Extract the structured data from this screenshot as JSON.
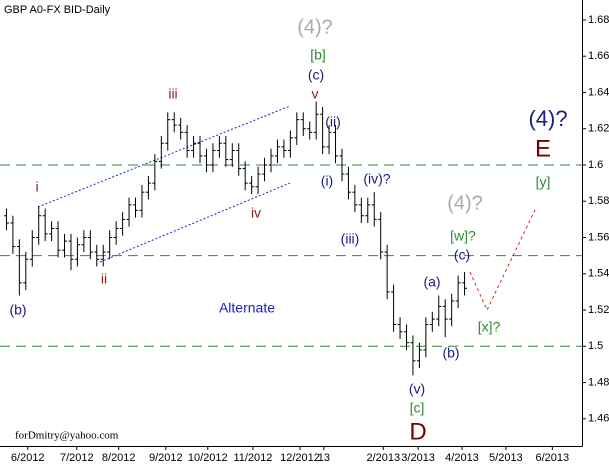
{
  "chart_data": {
    "type": "ohlc",
    "title": "GBP A0-FX BID-Daily",
    "xlim": [
      0,
      90.2
    ],
    "xticks": [
      {
        "value": 4.3,
        "label": "6/2012"
      },
      {
        "value": 11.9,
        "label": "7/2012"
      },
      {
        "value": 18.4,
        "label": "8/2012"
      },
      {
        "value": 25.7,
        "label": "9/2012"
      },
      {
        "value": 32.2,
        "label": "10/2012"
      },
      {
        "value": 39.2,
        "label": "11/2012"
      },
      {
        "value": 46.5,
        "label": "12/2012"
      },
      {
        "value": 50.2,
        "label": "13"
      },
      {
        "value": 59.4,
        "label": "2/2013"
      },
      {
        "value": 64.8,
        "label": "3/2013"
      },
      {
        "value": 71.6,
        "label": "4/2013"
      },
      {
        "value": 78.4,
        "label": "5/2013"
      },
      {
        "value": 85.6,
        "label": "6/2013"
      }
    ],
    "ylim": [
      1.445,
      1.691
    ],
    "yticks": [
      1.46,
      1.48,
      1.5,
      1.52,
      1.54,
      1.56,
      1.58,
      1.6,
      1.62,
      1.64,
      1.66,
      1.68
    ],
    "color": "#000000",
    "levels": [
      1.6,
      1.55,
      1.5
    ],
    "level_color": "#2e8b2e",
    "x": [
      1,
      2,
      3,
      4,
      5,
      6,
      7,
      8,
      9,
      10,
      11,
      12,
      13,
      14,
      15,
      16,
      17,
      18,
      19,
      20,
      21,
      22,
      23,
      24,
      25,
      26,
      27,
      28,
      29,
      30,
      31,
      32,
      33,
      34,
      35,
      36,
      37,
      38,
      39,
      40,
      41,
      42,
      43,
      44,
      45,
      46,
      47,
      48,
      49,
      50,
      51,
      52,
      53,
      54,
      55,
      56,
      57,
      58,
      59,
      60,
      61,
      62,
      63,
      64,
      65,
      66,
      67,
      68,
      69,
      70,
      71,
      72
    ],
    "open": [
      1.572,
      1.568,
      1.555,
      1.535,
      1.548,
      1.56,
      1.572,
      1.562,
      1.565,
      1.553,
      1.558,
      1.548,
      1.556,
      1.56,
      1.552,
      1.548,
      1.552,
      1.56,
      1.565,
      1.57,
      1.578,
      1.575,
      1.585,
      1.59,
      1.602,
      1.612,
      1.625,
      1.622,
      1.618,
      1.608,
      1.612,
      1.605,
      1.6,
      1.608,
      1.612,
      1.603,
      1.608,
      1.598,
      1.59,
      1.588,
      1.595,
      1.6,
      1.605,
      1.61,
      1.608,
      1.615,
      1.625,
      1.62,
      1.618,
      1.628,
      1.61,
      1.618,
      1.605,
      1.595,
      1.585,
      1.578,
      1.572,
      1.578,
      1.57,
      1.552,
      1.53,
      1.512,
      1.508,
      1.502,
      1.492,
      1.498,
      1.512,
      1.515,
      1.522,
      1.515,
      1.525,
      1.535
    ],
    "high": [
      1.576,
      1.572,
      1.559,
      1.552,
      1.564,
      1.577,
      1.576,
      1.569,
      1.569,
      1.562,
      1.562,
      1.56,
      1.564,
      1.564,
      1.556,
      1.556,
      1.564,
      1.569,
      1.574,
      1.582,
      1.582,
      1.589,
      1.594,
      1.606,
      1.616,
      1.629,
      1.629,
      1.626,
      1.622,
      1.616,
      1.616,
      1.609,
      1.612,
      1.616,
      1.616,
      1.612,
      1.612,
      1.602,
      1.594,
      1.599,
      1.604,
      1.609,
      1.614,
      1.614,
      1.619,
      1.629,
      1.629,
      1.624,
      1.635,
      1.632,
      1.622,
      1.622,
      1.609,
      1.599,
      1.589,
      1.582,
      1.582,
      1.585,
      1.574,
      1.556,
      1.534,
      1.516,
      1.512,
      1.506,
      1.502,
      1.516,
      1.519,
      1.528,
      1.526,
      1.529,
      1.539,
      1.541
    ],
    "low": [
      1.564,
      1.551,
      1.528,
      1.531,
      1.544,
      1.556,
      1.558,
      1.558,
      1.549,
      1.549,
      1.542,
      1.544,
      1.552,
      1.548,
      1.544,
      1.544,
      1.548,
      1.556,
      1.561,
      1.566,
      1.571,
      1.571,
      1.581,
      1.586,
      1.598,
      1.608,
      1.618,
      1.614,
      1.604,
      1.604,
      1.601,
      1.596,
      1.596,
      1.604,
      1.599,
      1.599,
      1.594,
      1.586,
      1.584,
      1.584,
      1.591,
      1.596,
      1.601,
      1.604,
      1.604,
      1.611,
      1.616,
      1.614,
      1.614,
      1.606,
      1.606,
      1.601,
      1.591,
      1.581,
      1.574,
      1.568,
      1.568,
      1.566,
      1.548,
      1.526,
      1.508,
      1.504,
      1.498,
      1.484,
      1.488,
      1.494,
      1.508,
      1.511,
      1.505,
      1.511,
      1.521,
      1.528
    ],
    "close": [
      1.568,
      1.555,
      1.535,
      1.548,
      1.56,
      1.572,
      1.562,
      1.565,
      1.553,
      1.558,
      1.548,
      1.556,
      1.56,
      1.552,
      1.548,
      1.552,
      1.56,
      1.565,
      1.57,
      1.578,
      1.575,
      1.585,
      1.59,
      1.602,
      1.612,
      1.625,
      1.622,
      1.618,
      1.608,
      1.612,
      1.605,
      1.6,
      1.608,
      1.612,
      1.603,
      1.608,
      1.598,
      1.59,
      1.588,
      1.595,
      1.6,
      1.605,
      1.61,
      1.608,
      1.615,
      1.625,
      1.62,
      1.618,
      1.628,
      1.61,
      1.618,
      1.605,
      1.595,
      1.585,
      1.578,
      1.572,
      1.578,
      1.57,
      1.552,
      1.53,
      1.512,
      1.508,
      1.502,
      1.492,
      1.498,
      1.512,
      1.515,
      1.522,
      1.515,
      1.525,
      1.535,
      1.532
    ],
    "annotations": [
      "(4)?",
      "[b]",
      "(c)",
      "v",
      "iii",
      "i",
      "ii",
      "iv",
      "(ii)",
      "(i)",
      "(iv)?",
      "(iii)",
      "(b)",
      "Alternate",
      "(4)?",
      "E",
      "(4)?",
      "[y]",
      "[w]?",
      "(c)",
      "(a)",
      "[x]?",
      "(b)",
      "(v)",
      "[c]",
      "D"
    ],
    "footer": "forDmitry@yahoo.com"
  }
}
